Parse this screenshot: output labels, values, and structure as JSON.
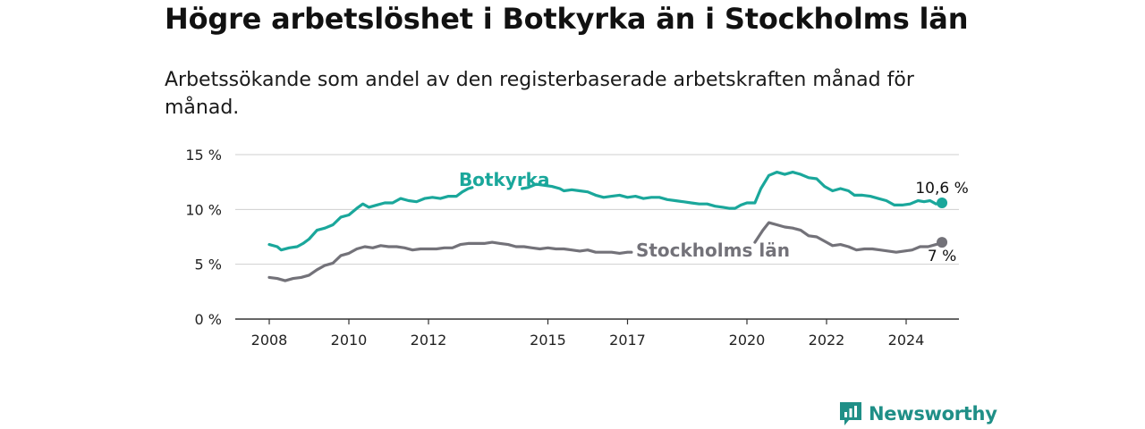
{
  "header": {
    "title": "Högre arbetslöshet i Botkyrka än i Stockholms län",
    "subtitle": "Arbetssökande som andel av den registerbaserade arbetskraften månad för månad."
  },
  "brand": {
    "name": "Newsworthy",
    "color": "#1f8f87",
    "icon": "newsworthy-logo-icon"
  },
  "chart_data": {
    "type": "line",
    "title": "Högre arbetslöshet i Botkyrka än i Stockholms län",
    "xlabel": "",
    "ylabel": "",
    "xlim": [
      2007,
      2026
    ],
    "ylim": [
      0,
      15
    ],
    "grid": true,
    "y_ticks": [
      {
        "value": 0,
        "label": "0 %"
      },
      {
        "value": 5,
        "label": "5 %"
      },
      {
        "value": 10,
        "label": "10 %"
      },
      {
        "value": 15,
        "label": "15 %"
      }
    ],
    "x_ticks": [
      {
        "value": 2008,
        "label": "2008"
      },
      {
        "value": 2010,
        "label": "2010"
      },
      {
        "value": 2012,
        "label": "2012"
      },
      {
        "value": 2015,
        "label": "2015"
      },
      {
        "value": 2017,
        "label": "2017"
      },
      {
        "value": 2020,
        "label": "2020"
      },
      {
        "value": 2022,
        "label": "2022"
      },
      {
        "value": 2024,
        "label": "2024"
      }
    ],
    "series": [
      {
        "name": "Botkyrka",
        "color": "#1aa79b",
        "end_label": "10,6 %",
        "points": [
          [
            2008.0,
            6.8
          ],
          [
            2008.2,
            6.6
          ],
          [
            2008.3,
            6.3
          ],
          [
            2008.5,
            6.5
          ],
          [
            2008.7,
            6.6
          ],
          [
            2008.85,
            6.9
          ],
          [
            2009.0,
            7.3
          ],
          [
            2009.2,
            8.1
          ],
          [
            2009.4,
            8.3
          ],
          [
            2009.6,
            8.6
          ],
          [
            2009.8,
            9.3
          ],
          [
            2010.0,
            9.5
          ],
          [
            2010.2,
            10.1
          ],
          [
            2010.35,
            10.5
          ],
          [
            2010.5,
            10.2
          ],
          [
            2010.7,
            10.4
          ],
          [
            2010.9,
            10.6
          ],
          [
            2011.1,
            10.6
          ],
          [
            2011.3,
            11.0
          ],
          [
            2011.5,
            10.8
          ],
          [
            2011.7,
            10.7
          ],
          [
            2011.9,
            11.0
          ],
          [
            2012.1,
            11.1
          ],
          [
            2012.3,
            11.0
          ],
          [
            2012.5,
            11.2
          ],
          [
            2012.7,
            11.2
          ],
          [
            2012.85,
            11.6
          ],
          [
            2013.0,
            11.9
          ],
          [
            2013.1,
            12.0
          ],
          [
            2014.35,
            11.9
          ],
          [
            2014.5,
            12.0
          ],
          [
            2014.7,
            12.3
          ],
          [
            2014.9,
            12.2
          ],
          [
            2015.1,
            12.1
          ],
          [
            2015.3,
            11.9
          ],
          [
            2015.4,
            11.7
          ],
          [
            2015.6,
            11.8
          ],
          [
            2015.8,
            11.7
          ],
          [
            2016.0,
            11.6
          ],
          [
            2016.2,
            11.3
          ],
          [
            2016.4,
            11.1
          ],
          [
            2016.6,
            11.2
          ],
          [
            2016.8,
            11.3
          ],
          [
            2017.0,
            11.1
          ],
          [
            2017.2,
            11.2
          ],
          [
            2017.4,
            11.0
          ],
          [
            2017.6,
            11.1
          ],
          [
            2017.8,
            11.1
          ],
          [
            2018.0,
            10.9
          ],
          [
            2018.2,
            10.8
          ],
          [
            2018.4,
            10.7
          ],
          [
            2018.6,
            10.6
          ],
          [
            2018.8,
            10.5
          ],
          [
            2019.0,
            10.5
          ],
          [
            2019.2,
            10.3
          ],
          [
            2019.4,
            10.2
          ],
          [
            2019.55,
            10.1
          ],
          [
            2019.7,
            10.1
          ],
          [
            2019.85,
            10.4
          ],
          [
            2020.0,
            10.6
          ],
          [
            2020.2,
            10.6
          ],
          [
            2020.35,
            11.9
          ],
          [
            2020.55,
            13.1
          ],
          [
            2020.75,
            13.4
          ],
          [
            2020.95,
            13.2
          ],
          [
            2021.15,
            13.4
          ],
          [
            2021.35,
            13.2
          ],
          [
            2021.55,
            12.9
          ],
          [
            2021.75,
            12.8
          ],
          [
            2021.95,
            12.1
          ],
          [
            2022.15,
            11.7
          ],
          [
            2022.35,
            11.9
          ],
          [
            2022.55,
            11.7
          ],
          [
            2022.7,
            11.3
          ],
          [
            2022.9,
            11.3
          ],
          [
            2023.1,
            11.2
          ],
          [
            2023.3,
            11.0
          ],
          [
            2023.5,
            10.8
          ],
          [
            2023.7,
            10.4
          ],
          [
            2023.9,
            10.4
          ],
          [
            2024.1,
            10.5
          ],
          [
            2024.3,
            10.8
          ],
          [
            2024.45,
            10.7
          ],
          [
            2024.6,
            10.8
          ],
          [
            2024.75,
            10.5
          ],
          [
            2024.9,
            10.6
          ]
        ],
        "label_anchor": [
          2013.1,
          12.0
        ],
        "gap_after_x": 2013.1,
        "gap_resume_x": 2014.35
      },
      {
        "name": "Stockholms län",
        "color": "#737279",
        "end_label": "7 %",
        "points": [
          [
            2008.0,
            3.8
          ],
          [
            2008.2,
            3.7
          ],
          [
            2008.4,
            3.5
          ],
          [
            2008.6,
            3.7
          ],
          [
            2008.8,
            3.8
          ],
          [
            2009.0,
            4.0
          ],
          [
            2009.2,
            4.5
          ],
          [
            2009.4,
            4.9
          ],
          [
            2009.6,
            5.1
          ],
          [
            2009.8,
            5.8
          ],
          [
            2010.0,
            6.0
          ],
          [
            2010.2,
            6.4
          ],
          [
            2010.4,
            6.6
          ],
          [
            2010.6,
            6.5
          ],
          [
            2010.8,
            6.7
          ],
          [
            2011.0,
            6.6
          ],
          [
            2011.2,
            6.6
          ],
          [
            2011.4,
            6.5
          ],
          [
            2011.6,
            6.3
          ],
          [
            2011.8,
            6.4
          ],
          [
            2012.0,
            6.4
          ],
          [
            2012.2,
            6.4
          ],
          [
            2012.4,
            6.5
          ],
          [
            2012.6,
            6.5
          ],
          [
            2012.8,
            6.8
          ],
          [
            2013.0,
            6.9
          ],
          [
            2013.2,
            6.9
          ],
          [
            2013.4,
            6.9
          ],
          [
            2013.6,
            7.0
          ],
          [
            2013.8,
            6.9
          ],
          [
            2014.0,
            6.8
          ],
          [
            2014.2,
            6.6
          ],
          [
            2014.4,
            6.6
          ],
          [
            2014.6,
            6.5
          ],
          [
            2014.8,
            6.4
          ],
          [
            2015.0,
            6.5
          ],
          [
            2015.2,
            6.4
          ],
          [
            2015.4,
            6.4
          ],
          [
            2015.6,
            6.3
          ],
          [
            2015.8,
            6.2
          ],
          [
            2016.0,
            6.3
          ],
          [
            2016.2,
            6.1
          ],
          [
            2016.4,
            6.1
          ],
          [
            2016.6,
            6.1
          ],
          [
            2016.8,
            6.0
          ],
          [
            2017.0,
            6.1
          ],
          [
            2017.1,
            6.1
          ],
          [
            2020.2,
            7.0
          ],
          [
            2020.4,
            8.1
          ],
          [
            2020.55,
            8.8
          ],
          [
            2020.75,
            8.6
          ],
          [
            2020.95,
            8.4
          ],
          [
            2021.15,
            8.3
          ],
          [
            2021.35,
            8.1
          ],
          [
            2021.55,
            7.6
          ],
          [
            2021.75,
            7.5
          ],
          [
            2021.95,
            7.1
          ],
          [
            2022.15,
            6.7
          ],
          [
            2022.35,
            6.8
          ],
          [
            2022.55,
            6.6
          ],
          [
            2022.75,
            6.3
          ],
          [
            2022.95,
            6.4
          ],
          [
            2023.15,
            6.4
          ],
          [
            2023.35,
            6.3
          ],
          [
            2023.55,
            6.2
          ],
          [
            2023.75,
            6.1
          ],
          [
            2023.95,
            6.2
          ],
          [
            2024.15,
            6.3
          ],
          [
            2024.35,
            6.6
          ],
          [
            2024.55,
            6.6
          ],
          [
            2024.75,
            6.8
          ],
          [
            2024.9,
            7.0
          ]
        ],
        "label_anchor": [
          2017.1,
          6.1
        ],
        "gap_after_x": 2017.1,
        "gap_resume_x": 2020.2
      }
    ]
  }
}
